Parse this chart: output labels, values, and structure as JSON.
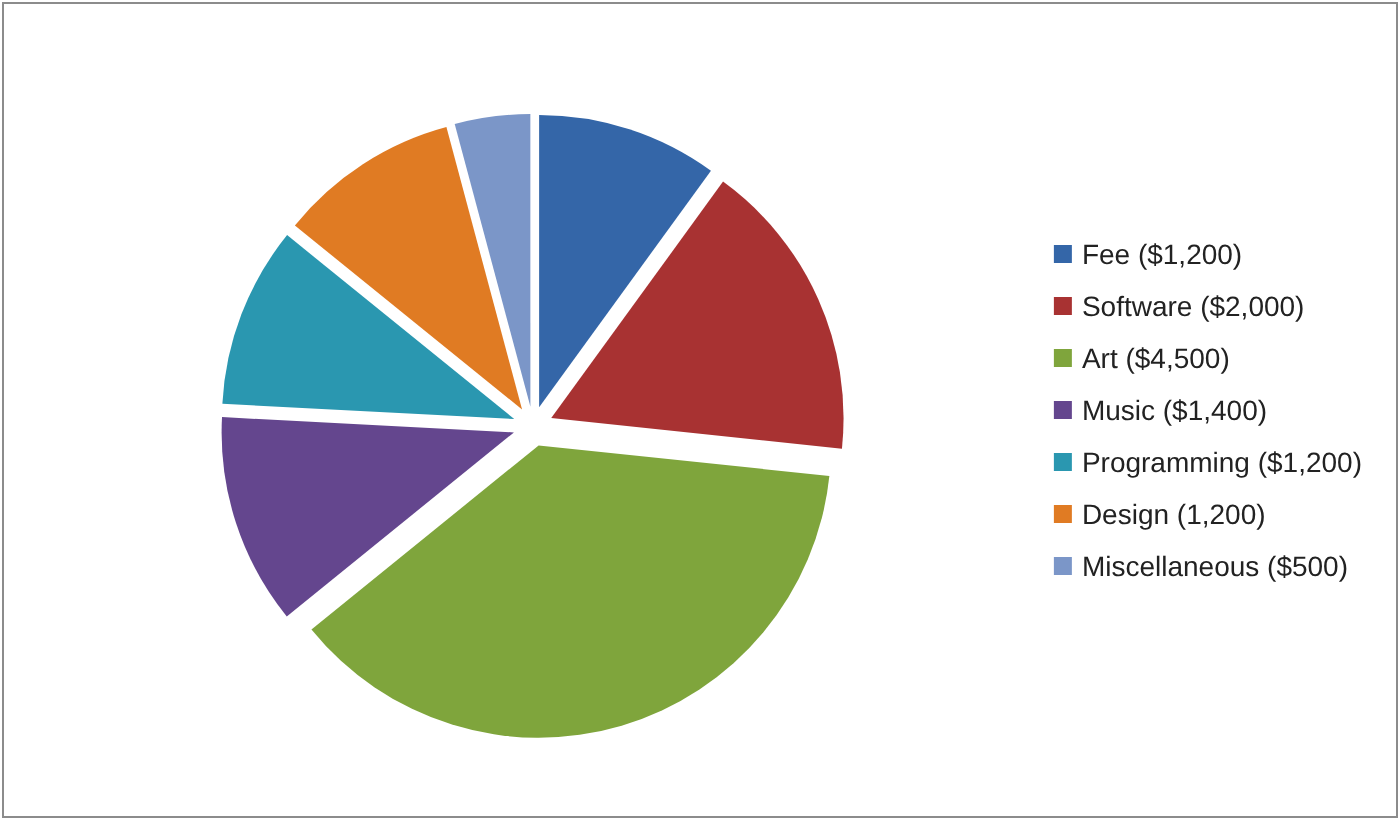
{
  "chart_data": {
    "type": "pie",
    "categories": [
      "Fee ($1,200)",
      "Software ($2,000)",
      "Art ($4,500)",
      "Music ($1,400)",
      "Programming ($1,200)",
      "Design (1,200)",
      "Miscellaneous ($500)"
    ],
    "values": [
      1200,
      2000,
      4500,
      1400,
      1200,
      1200,
      500
    ],
    "colors": [
      "#3466a8",
      "#a83232",
      "#7fa53c",
      "#64468e",
      "#2a97b0",
      "#e07b23",
      "#7b96c8"
    ],
    "legend": "right"
  }
}
